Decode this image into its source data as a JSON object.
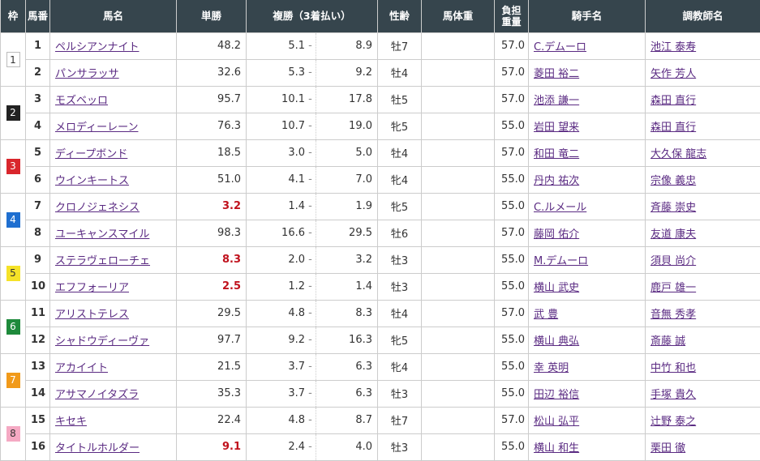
{
  "headers": {
    "waku": "枠",
    "num": "馬番",
    "name": "馬名",
    "win": "単勝",
    "place": "複勝（3着払い）",
    "sexage": "性齢",
    "weight": "馬体重",
    "load": "負担重量",
    "jockey": "騎手名",
    "trainer": "調教師名"
  },
  "waku_colors": {
    "1": [
      "#ffffff",
      "#333333"
    ],
    "2": [
      "#222222",
      "#ffffff"
    ],
    "3": [
      "#d9262c",
      "#ffffff"
    ],
    "4": [
      "#1f6fd0",
      "#ffffff"
    ],
    "5": [
      "#f5e228",
      "#333333"
    ],
    "6": [
      "#1e8a3b",
      "#ffffff"
    ],
    "7": [
      "#f19a1a",
      "#ffffff"
    ],
    "8": [
      "#f5a9c3",
      "#333333"
    ]
  },
  "accent_favorite": "#c0121d",
  "rows": [
    {
      "waku": "1",
      "num": "1",
      "name": "ペルシアンナイト",
      "win": "48.2",
      "place_lo": "5.1",
      "place_hi": "8.9",
      "sexage": "牡7",
      "weight": "",
      "load": "57.0",
      "jockey": "C.デムーロ",
      "trainer": "池江 泰寿"
    },
    {
      "waku": "1",
      "num": "2",
      "name": "パンサラッサ",
      "win": "32.6",
      "place_lo": "5.3",
      "place_hi": "9.2",
      "sexage": "牡4",
      "weight": "",
      "load": "57.0",
      "jockey": "菱田 裕二",
      "trainer": "矢作 芳人"
    },
    {
      "waku": "2",
      "num": "3",
      "name": "モズベッロ",
      "win": "95.7",
      "place_lo": "10.1",
      "place_hi": "17.8",
      "sexage": "牡5",
      "weight": "",
      "load": "57.0",
      "jockey": "池添 謙一",
      "trainer": "森田 直行"
    },
    {
      "waku": "2",
      "num": "4",
      "name": "メロディーレーン",
      "win": "76.3",
      "place_lo": "10.7",
      "place_hi": "19.0",
      "sexage": "牝5",
      "weight": "",
      "load": "55.0",
      "jockey": "岩田 望来",
      "trainer": "森田 直行"
    },
    {
      "waku": "3",
      "num": "5",
      "name": "ディープボンド",
      "win": "18.5",
      "place_lo": "3.0",
      "place_hi": "5.0",
      "sexage": "牡4",
      "weight": "",
      "load": "57.0",
      "jockey": "和田 竜二",
      "trainer": "大久保 龍志"
    },
    {
      "waku": "3",
      "num": "6",
      "name": "ウインキートス",
      "win": "51.0",
      "place_lo": "4.1",
      "place_hi": "7.0",
      "sexage": "牝4",
      "weight": "",
      "load": "55.0",
      "jockey": "丹内 祐次",
      "trainer": "宗像 義忠"
    },
    {
      "waku": "4",
      "num": "7",
      "name": "クロノジェネシス",
      "win": "3.2",
      "place_lo": "1.4",
      "place_hi": "1.9",
      "sexage": "牝5",
      "weight": "",
      "load": "55.0",
      "jockey": "C.ルメール",
      "trainer": "斉藤 崇史"
    },
    {
      "waku": "4",
      "num": "8",
      "name": "ユーキャンスマイル",
      "win": "98.3",
      "place_lo": "16.6",
      "place_hi": "29.5",
      "sexage": "牡6",
      "weight": "",
      "load": "57.0",
      "jockey": "藤岡 佑介",
      "trainer": "友道 康夫"
    },
    {
      "waku": "5",
      "num": "9",
      "name": "ステラヴェローチェ",
      "win": "8.3",
      "place_lo": "2.0",
      "place_hi": "3.2",
      "sexage": "牡3",
      "weight": "",
      "load": "55.0",
      "jockey": "M.デムーロ",
      "trainer": "須貝 尚介"
    },
    {
      "waku": "5",
      "num": "10",
      "name": "エフフォーリア",
      "win": "2.5",
      "place_lo": "1.2",
      "place_hi": "1.4",
      "sexage": "牡3",
      "weight": "",
      "load": "55.0",
      "jockey": "横山 武史",
      "trainer": "鹿戸 雄一"
    },
    {
      "waku": "6",
      "num": "11",
      "name": "アリストテレス",
      "win": "29.5",
      "place_lo": "4.8",
      "place_hi": "8.3",
      "sexage": "牡4",
      "weight": "",
      "load": "57.0",
      "jockey": "武 豊",
      "trainer": "音無 秀孝"
    },
    {
      "waku": "6",
      "num": "12",
      "name": "シャドウディーヴァ",
      "win": "97.7",
      "place_lo": "9.2",
      "place_hi": "16.3",
      "sexage": "牝5",
      "weight": "",
      "load": "55.0",
      "jockey": "横山 典弘",
      "trainer": "斎藤 誠"
    },
    {
      "waku": "7",
      "num": "13",
      "name": "アカイイト",
      "win": "21.5",
      "place_lo": "3.7",
      "place_hi": "6.3",
      "sexage": "牝4",
      "weight": "",
      "load": "55.0",
      "jockey": "幸 英明",
      "trainer": "中竹 和也"
    },
    {
      "waku": "7",
      "num": "14",
      "name": "アサマノイタズラ",
      "win": "35.3",
      "place_lo": "3.7",
      "place_hi": "6.3",
      "sexage": "牡3",
      "weight": "",
      "load": "55.0",
      "jockey": "田辺 裕信",
      "trainer": "手塚 貴久"
    },
    {
      "waku": "8",
      "num": "15",
      "name": "キセキ",
      "win": "22.4",
      "place_lo": "4.8",
      "place_hi": "8.7",
      "sexage": "牡7",
      "weight": "",
      "load": "57.0",
      "jockey": "松山 弘平",
      "trainer": "辻野 泰之"
    },
    {
      "waku": "8",
      "num": "16",
      "name": "タイトルホルダー",
      "win": "9.1",
      "place_lo": "2.4",
      "place_hi": "4.0",
      "sexage": "牡3",
      "weight": "",
      "load": "55.0",
      "jockey": "横山 和生",
      "trainer": "栗田 徹"
    }
  ]
}
